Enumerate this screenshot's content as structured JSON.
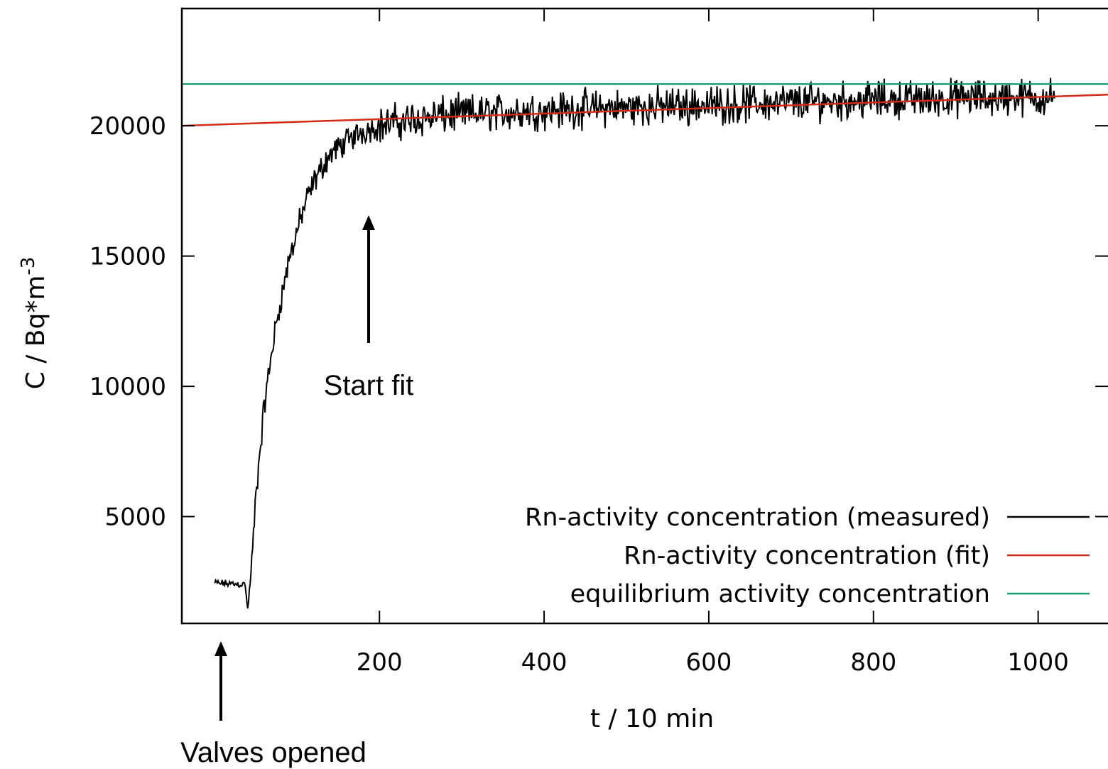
{
  "chart_data": {
    "type": "line",
    "xlabel": "t  / 10 min",
    "ylabel_main": "C / Bq*m",
    "ylabel_sup": "-3",
    "xlim": [
      -40,
      1090
    ],
    "ylim": [
      900,
      24500
    ],
    "xticks": [
      200,
      400,
      600,
      800,
      1000
    ],
    "yticks": [
      5000,
      10000,
      15000,
      20000
    ],
    "grid": false,
    "legend_position": "bottom-right",
    "series": [
      {
        "name": "Rn-activity concentration (measured)",
        "color": "#000000",
        "kind": "measured",
        "profile": [
          [
            0,
            2450
          ],
          [
            37,
            2400
          ],
          [
            40,
            1400
          ],
          [
            45,
            3200
          ],
          [
            50,
            5800
          ],
          [
            60,
            9200
          ],
          [
            70,
            11500
          ],
          [
            80,
            13300
          ],
          [
            90,
            14800
          ],
          [
            100,
            16000
          ],
          [
            110,
            17000
          ],
          [
            120,
            17800
          ],
          [
            130,
            18400
          ],
          [
            140,
            18900
          ],
          [
            160,
            19400
          ],
          [
            180,
            19800
          ],
          [
            200,
            20000
          ],
          [
            250,
            20300
          ],
          [
            300,
            20450
          ],
          [
            400,
            20600
          ],
          [
            500,
            20700
          ],
          [
            600,
            20800
          ],
          [
            700,
            20900
          ],
          [
            800,
            21000
          ],
          [
            900,
            21050
          ],
          [
            1000,
            21100
          ],
          [
            1020,
            21100
          ]
        ],
        "noise_amplitude": 900
      },
      {
        "name": "Rn-activity concentration (fit)",
        "color": "#d42b16",
        "kind": "fit",
        "points": [
          [
            -40,
            20000
          ],
          [
            1090,
            21200
          ]
        ]
      },
      {
        "name": "equilibrium activity concentration",
        "color": "#1e9e6e",
        "kind": "constant",
        "points": [
          [
            -40,
            21600
          ],
          [
            1090,
            21600
          ]
        ]
      }
    ],
    "annotations": [
      {
        "text": "Start fit",
        "x": 200,
        "arrow_from": 10000,
        "arrow_to": 15800
      },
      {
        "text": "Valves opened",
        "x": 40,
        "arrow": "below-axis"
      }
    ]
  }
}
